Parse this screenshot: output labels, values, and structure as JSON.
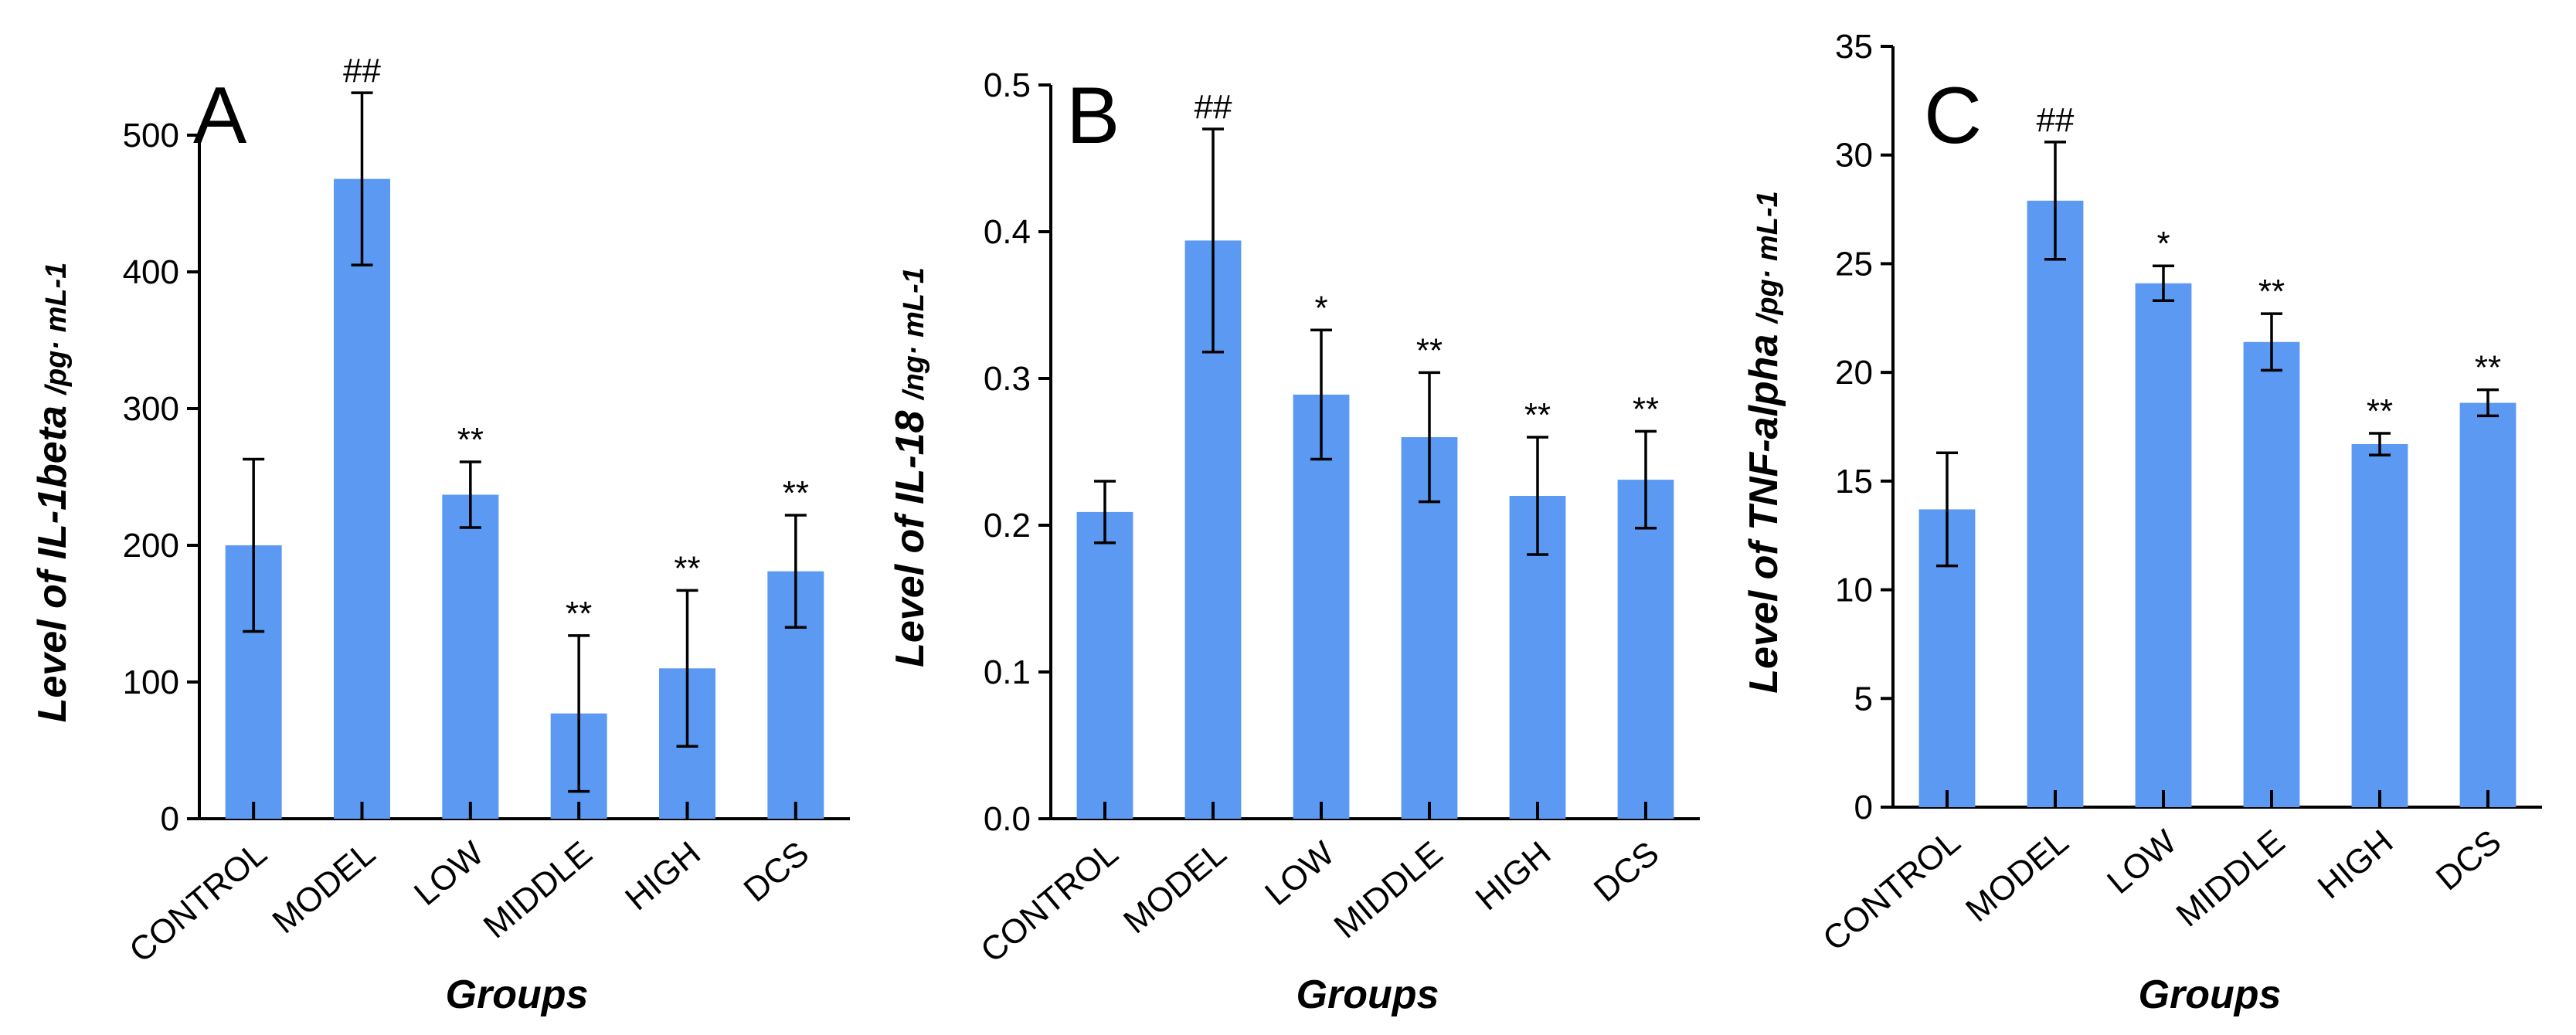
{
  "colors": {
    "bar": "#5b99f2",
    "axis": "#000000"
  },
  "chart_data": [
    {
      "type": "bar",
      "panel": "A",
      "title": "",
      "xlabel": "Groups",
      "ylabel": "Level of IL-1beta",
      "ylabel_unit": "/pg· mL-1",
      "ylim": [
        0,
        500
      ],
      "yticks": [
        0,
        100,
        200,
        300,
        400,
        500
      ],
      "ytick_labels": [
        "0",
        "100",
        "200",
        "300",
        "400",
        "500"
      ],
      "categories": [
        "CONTROL",
        "MODEL",
        "LOW",
        "MIDDLE",
        "HIGH",
        "DCS"
      ],
      "values": [
        200,
        468,
        237,
        77,
        110,
        181
      ],
      "errors": [
        63,
        63,
        24,
        57,
        57,
        41
      ],
      "annotations": [
        "",
        "##",
        "**",
        "**",
        "**",
        "**"
      ]
    },
    {
      "type": "bar",
      "panel": "B",
      "title": "",
      "xlabel": "Groups",
      "ylabel": "Level of IL-18",
      "ylabel_unit": "/ng· mL-1",
      "ylim": [
        0,
        0.5
      ],
      "yticks": [
        0,
        0.1,
        0.2,
        0.3,
        0.4,
        0.5
      ],
      "ytick_labels": [
        "0.0",
        "0.1",
        "0.2",
        "0.3",
        "0.4",
        "0.5"
      ],
      "categories": [
        "CONTROL",
        "MODEL",
        "LOW",
        "MIDDLE",
        "HIGH",
        "DCS"
      ],
      "values": [
        0.209,
        0.394,
        0.289,
        0.26,
        0.22,
        0.231
      ],
      "errors": [
        0.021,
        0.076,
        0.044,
        0.044,
        0.04,
        0.033
      ],
      "annotations": [
        "",
        "##",
        "*",
        "**",
        "**",
        "**"
      ]
    },
    {
      "type": "bar",
      "panel": "C",
      "title": "",
      "xlabel": "Groups",
      "ylabel": "Level of TNF-alpha",
      "ylabel_unit": "/pg· mL-1",
      "ylim": [
        0,
        35
      ],
      "yticks": [
        0,
        5,
        10,
        15,
        20,
        25,
        30,
        35
      ],
      "ytick_labels": [
        "0",
        "5",
        "10",
        "15",
        "20",
        "25",
        "30",
        "35"
      ],
      "categories": [
        "CONTROL",
        "MODEL",
        "LOW",
        "MIDDLE",
        "HIGH",
        "DCS"
      ],
      "values": [
        13.7,
        27.9,
        24.1,
        21.4,
        16.7,
        18.6
      ],
      "errors": [
        2.6,
        2.7,
        0.8,
        1.3,
        0.5,
        0.6
      ],
      "annotations": [
        "",
        "##",
        "*",
        "**",
        "**",
        "**"
      ]
    }
  ]
}
